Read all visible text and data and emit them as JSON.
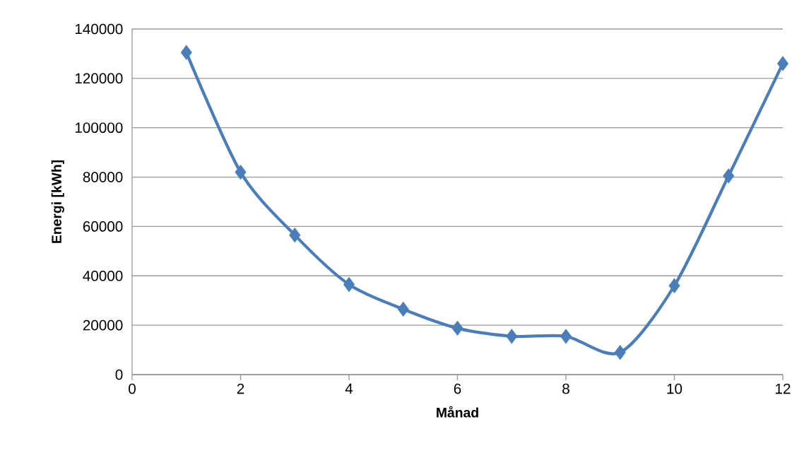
{
  "chart_data": {
    "type": "line",
    "xlabel": "Månad",
    "ylabel": "Energi [kWh]",
    "x": [
      1,
      2,
      3,
      4,
      5,
      6,
      7,
      8,
      9,
      10,
      11,
      12
    ],
    "series": [
      {
        "color": "#4a7ebb",
        "values": [
          130500,
          82000,
          56500,
          36500,
          26500,
          18800,
          15500,
          15500,
          9000,
          36000,
          80500,
          126000
        ]
      }
    ],
    "xlim": [
      0,
      12
    ],
    "xticks": [
      0,
      2,
      4,
      6,
      8,
      10,
      12
    ],
    "ylim": [
      0,
      140000
    ],
    "yticks": [
      0,
      20000,
      40000,
      60000,
      80000,
      100000,
      120000,
      140000
    ],
    "grid": "y",
    "marker": "diamond",
    "line_style": "solid"
  }
}
